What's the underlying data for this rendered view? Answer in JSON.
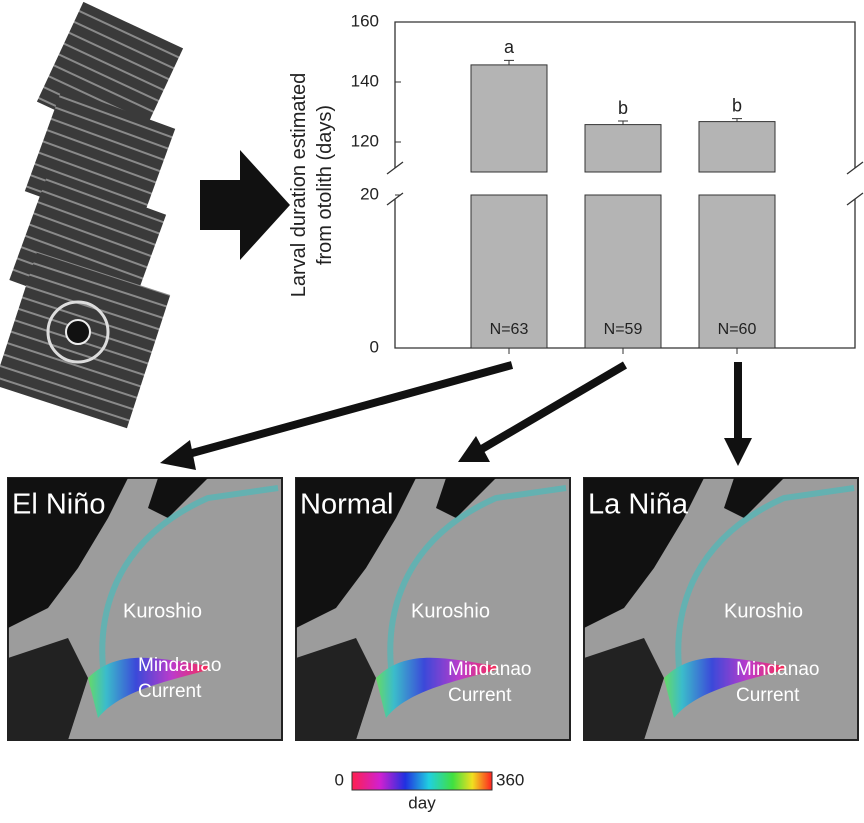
{
  "chart_data": {
    "type": "bar",
    "ylabel": [
      "Larval duration estimated",
      "from otolith (days)"
    ],
    "categories": [
      null,
      null,
      null
    ],
    "values": [
      145.7,
      125.8,
      126.8
    ],
    "errors": [
      1.5,
      1.2,
      1.0
    ],
    "significance": [
      "a",
      "b",
      "b"
    ],
    "bar_labels": [
      "N=63",
      "N=59",
      "N=60"
    ],
    "color": "#b4b4b4",
    "ylim": [
      0,
      160
    ],
    "y_break": [
      20,
      110
    ],
    "yticks": [
      0,
      20,
      120,
      140,
      160
    ]
  },
  "panels": [
    {
      "title": "El Niño",
      "kuroshio": "Kuroshio",
      "mindanao": [
        "Mindanao",
        "Current"
      ]
    },
    {
      "title": "Normal",
      "kuroshio": "Kuroshio",
      "mindanao": [
        "Mindanao",
        "Current"
      ]
    },
    {
      "title": "La Niña",
      "kuroshio": "Kuroshio",
      "mindanao": [
        "Mindanao",
        "Current"
      ]
    }
  ],
  "colorbar": {
    "ticks": [
      0,
      360
    ],
    "label": "day"
  }
}
